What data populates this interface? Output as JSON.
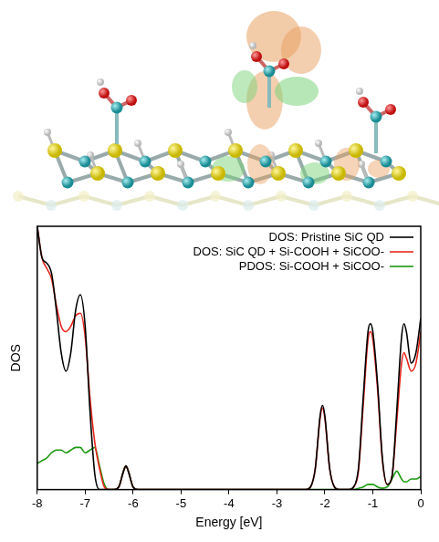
{
  "chart_data": {
    "type": "line",
    "x_label": "Energy [eV]",
    "y_label": "DOS",
    "xlim": [
      -8,
      0
    ],
    "xticks": [
      -8,
      -7,
      -6,
      -5,
      -4,
      -3,
      -2,
      -1,
      0
    ],
    "ylim": [
      0,
      1
    ],
    "tick_labels": "x",
    "grid": false,
    "legend": "upper right",
    "x": [
      -8,
      -7.9,
      -7.8,
      -7.7,
      -7.6,
      -7.5,
      -7.4,
      -7.3,
      -7.2,
      -7.1,
      -7.0,
      -6.9,
      -6.8,
      -6.7,
      -6.6,
      -6.5,
      -6.4,
      -6.3,
      -6.2,
      -6.15,
      -6.1,
      -6.0,
      -5.9,
      -5.8,
      -5,
      -4,
      -3,
      -2.4,
      -2.3,
      -2.2,
      -2.1,
      -2.05,
      -2.0,
      -1.9,
      -1.8,
      -1.7,
      -1.6,
      -1.5,
      -1.4,
      -1.3,
      -1.2,
      -1.1,
      -1.05,
      -1.0,
      -0.9,
      -0.8,
      -0.7,
      -0.6,
      -0.5,
      -0.4,
      -0.35,
      -0.3,
      -0.2,
      -0.1,
      0
    ],
    "series": [
      {
        "name": "DOS: Pristine SiC QD",
        "color": "#000000",
        "values": [
          1.0,
          0.88,
          0.86,
          0.82,
          0.68,
          0.52,
          0.45,
          0.52,
          0.68,
          0.74,
          0.62,
          0.3,
          0.06,
          0.0,
          0,
          0,
          0,
          0.01,
          0.07,
          0.09,
          0.07,
          0.01,
          0,
          0,
          0,
          0,
          0,
          0,
          0.01,
          0.08,
          0.28,
          0.32,
          0.28,
          0.08,
          0.01,
          0,
          0,
          0,
          0.01,
          0.08,
          0.35,
          0.6,
          0.63,
          0.6,
          0.4,
          0.12,
          0.02,
          0.05,
          0.3,
          0.58,
          0.63,
          0.6,
          0.48,
          0.52,
          0.65
        ]
      },
      {
        "name": "DOS: SiC QD + Si-COOH + SiCOO-",
        "color": "#e8271c",
        "values": [
          1.0,
          0.88,
          0.84,
          0.8,
          0.7,
          0.62,
          0.6,
          0.62,
          0.66,
          0.67,
          0.58,
          0.35,
          0.18,
          0.08,
          0.01,
          0,
          0,
          0.01,
          0.07,
          0.09,
          0.07,
          0.01,
          0,
          0,
          0,
          0,
          0,
          0,
          0.01,
          0.08,
          0.27,
          0.31,
          0.27,
          0.08,
          0.01,
          0,
          0,
          0,
          0.01,
          0.07,
          0.32,
          0.57,
          0.6,
          0.57,
          0.38,
          0.11,
          0.02,
          0.05,
          0.26,
          0.48,
          0.52,
          0.5,
          0.45,
          0.48,
          0.6
        ]
      },
      {
        "name": "PDOS: Si-COOH + SiCOO-",
        "color": "#1a9a12",
        "values": [
          0.1,
          0.11,
          0.12,
          0.14,
          0.15,
          0.15,
          0.14,
          0.15,
          0.16,
          0.16,
          0.14,
          0.15,
          0.16,
          0.09,
          0.02,
          0,
          0,
          0.01,
          0.07,
          0.09,
          0.07,
          0.01,
          0,
          0,
          0,
          0,
          0,
          0,
          0,
          0,
          0,
          0,
          0,
          0,
          0,
          0,
          0,
          0,
          0,
          0.005,
          0.01,
          0.02,
          0.02,
          0.02,
          0.01,
          0.005,
          0.01,
          0.04,
          0.07,
          0.04,
          0.03,
          0.03,
          0.04,
          0.04,
          0.05
        ]
      }
    ]
  }
}
